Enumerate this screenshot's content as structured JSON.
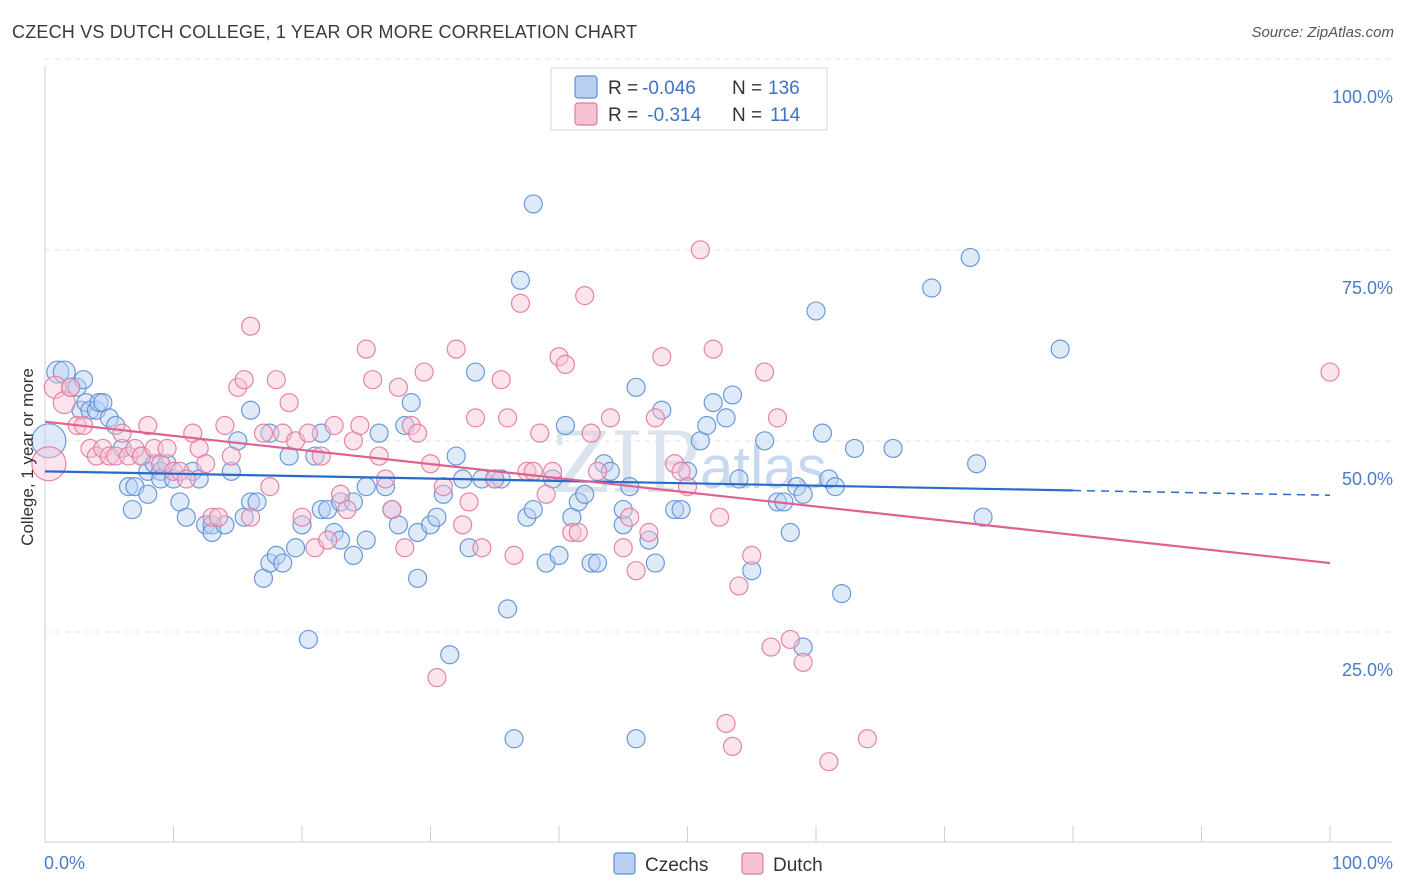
{
  "title": "CZECH VS DUTCH COLLEGE, 1 YEAR OR MORE CORRELATION CHART",
  "source": "Source: ZipAtlas.com",
  "colors": {
    "czechs": "#5b8fd6",
    "czechs_fill": "#b8d0f2",
    "dutch": "#e3789d",
    "dutch_fill": "#f7c3d4",
    "czechs_line": "#2a6ac9",
    "dutch_line": "#e0608e"
  },
  "legend": {
    "rows": [
      {
        "r_label": "R = ",
        "r_value": "-0.046",
        "n_label": "N = ",
        "n_value": "136"
      },
      {
        "r_label": "R = ",
        "r_value": " -0.314",
        "n_label": "N = ",
        "n_value": "114"
      }
    ]
  },
  "bottom_legend": {
    "czechs": "Czechs",
    "dutch": "Dutch"
  },
  "watermark": {
    "zip": "ZIP",
    "atlas": "atlas"
  },
  "chart_data": {
    "type": "scatter",
    "xlabel": "",
    "ylabel": "College, 1 year or more",
    "x_tick_labels": [
      "0.0%",
      "100.0%"
    ],
    "y_tick_labels": [
      "100.0%",
      "75.0%",
      "50.0%",
      "25.0%"
    ],
    "xlim": [
      0,
      100
    ],
    "ylim": [
      0,
      100
    ],
    "grid": "horizontal dashed",
    "series": [
      {
        "name": "Czechs",
        "trend": {
          "x0": 0,
          "y0": 51.0,
          "x1": 80,
          "y1": 48.5,
          "dash_to": 100
        },
        "points": [
          [
            0.3,
            55
          ],
          [
            1,
            64
          ],
          [
            1.5,
            64
          ],
          [
            2,
            62
          ],
          [
            2.5,
            62
          ],
          [
            2.8,
            59
          ],
          [
            3,
            63
          ],
          [
            3.2,
            60
          ],
          [
            3.5,
            59
          ],
          [
            4,
            59
          ],
          [
            4.2,
            60
          ],
          [
            4.5,
            60
          ],
          [
            5,
            58
          ],
          [
            5.5,
            57
          ],
          [
            6,
            54
          ],
          [
            6.5,
            49
          ],
          [
            6.8,
            46
          ],
          [
            7,
            49
          ],
          [
            7.5,
            53
          ],
          [
            8,
            51
          ],
          [
            8,
            48
          ],
          [
            8.5,
            52
          ],
          [
            9,
            51
          ],
          [
            9,
            50
          ],
          [
            9.5,
            52
          ],
          [
            10,
            50
          ],
          [
            10.5,
            47
          ],
          [
            11,
            45
          ],
          [
            11.5,
            51
          ],
          [
            12,
            50
          ],
          [
            12.5,
            44
          ],
          [
            13,
            44
          ],
          [
            13,
            43
          ],
          [
            14,
            44
          ],
          [
            14.5,
            51
          ],
          [
            15,
            55
          ],
          [
            15.5,
            45
          ],
          [
            16,
            47
          ],
          [
            16,
            59
          ],
          [
            16.5,
            47
          ],
          [
            17,
            37
          ],
          [
            17.5,
            56
          ],
          [
            17.5,
            39
          ],
          [
            18,
            40
          ],
          [
            18.5,
            39
          ],
          [
            19,
            53
          ],
          [
            19.5,
            41
          ],
          [
            20,
            44
          ],
          [
            20.5,
            29
          ],
          [
            21,
            53
          ],
          [
            21.5,
            46
          ],
          [
            21.5,
            56
          ],
          [
            22,
            46
          ],
          [
            22.5,
            43
          ],
          [
            23,
            42
          ],
          [
            23,
            47
          ],
          [
            24,
            47
          ],
          [
            24,
            40
          ],
          [
            25,
            42
          ],
          [
            25,
            49
          ],
          [
            26,
            56
          ],
          [
            26.5,
            49
          ],
          [
            27,
            46
          ],
          [
            27.5,
            44
          ],
          [
            28,
            57
          ],
          [
            28.5,
            60
          ],
          [
            29,
            37
          ],
          [
            29,
            43
          ],
          [
            30,
            44
          ],
          [
            30.5,
            45
          ],
          [
            31,
            48
          ],
          [
            31.5,
            27
          ],
          [
            32,
            53
          ],
          [
            32.5,
            50
          ],
          [
            33,
            41
          ],
          [
            33.5,
            64
          ],
          [
            34,
            50
          ],
          [
            35,
            50
          ],
          [
            35.5,
            50
          ],
          [
            36,
            33
          ],
          [
            36.5,
            16
          ],
          [
            37,
            76
          ],
          [
            37.5,
            45
          ],
          [
            38,
            46
          ],
          [
            38,
            86
          ],
          [
            39,
            39
          ],
          [
            39.5,
            50
          ],
          [
            40,
            40
          ],
          [
            40.5,
            57
          ],
          [
            41,
            45
          ],
          [
            41.5,
            47
          ],
          [
            42,
            48
          ],
          [
            42.5,
            39
          ],
          [
            43,
            39
          ],
          [
            43.5,
            52
          ],
          [
            44,
            51
          ],
          [
            45,
            44
          ],
          [
            45,
            46
          ],
          [
            45.5,
            49
          ],
          [
            46,
            62
          ],
          [
            46,
            16
          ],
          [
            47,
            42
          ],
          [
            47.5,
            39
          ],
          [
            48,
            59
          ],
          [
            49,
            46
          ],
          [
            49.5,
            46
          ],
          [
            50,
            51
          ],
          [
            51,
            55
          ],
          [
            51.5,
            57
          ],
          [
            52,
            60
          ],
          [
            53,
            58
          ],
          [
            53.5,
            61
          ],
          [
            54,
            50
          ],
          [
            55,
            38
          ],
          [
            56,
            55
          ],
          [
            57,
            47
          ],
          [
            57.5,
            47
          ],
          [
            58,
            43
          ],
          [
            58.5,
            49
          ],
          [
            59,
            48
          ],
          [
            59,
            28
          ],
          [
            60,
            72
          ],
          [
            60.5,
            56
          ],
          [
            61,
            50
          ],
          [
            61.5,
            49
          ],
          [
            62,
            35
          ],
          [
            63,
            54
          ],
          [
            66,
            54
          ],
          [
            69,
            75
          ],
          [
            72,
            79
          ],
          [
            72.5,
            52
          ],
          [
            73,
            45
          ],
          [
            79,
            67
          ]
        ]
      },
      {
        "name": "Dutch",
        "trend": {
          "x0": 0,
          "y0": 57.5,
          "x1": 100,
          "y1": 39.0
        },
        "points": [
          [
            0.3,
            52
          ],
          [
            0.8,
            62
          ],
          [
            1.5,
            60
          ],
          [
            2,
            62
          ],
          [
            2.5,
            57
          ],
          [
            3,
            57
          ],
          [
            3.5,
            54
          ],
          [
            4,
            53
          ],
          [
            4.5,
            54
          ],
          [
            5,
            53
          ],
          [
            5.5,
            53
          ],
          [
            6,
            56
          ],
          [
            6.5,
            53
          ],
          [
            7,
            54
          ],
          [
            7.5,
            53
          ],
          [
            8,
            57
          ],
          [
            8.5,
            54
          ],
          [
            9,
            52
          ],
          [
            9.5,
            54
          ],
          [
            10,
            51
          ],
          [
            10.5,
            51
          ],
          [
            11,
            50
          ],
          [
            11.5,
            56
          ],
          [
            12,
            54
          ],
          [
            12.5,
            52
          ],
          [
            13,
            45
          ],
          [
            13.5,
            45
          ],
          [
            14,
            57
          ],
          [
            14.5,
            53
          ],
          [
            15,
            62
          ],
          [
            15.5,
            63
          ],
          [
            16,
            45
          ],
          [
            16,
            70
          ],
          [
            17,
            56
          ],
          [
            17.5,
            49
          ],
          [
            18,
            63
          ],
          [
            18.5,
            56
          ],
          [
            19,
            60
          ],
          [
            19.5,
            55
          ],
          [
            20,
            45
          ],
          [
            20.5,
            56
          ],
          [
            21,
            41
          ],
          [
            21.5,
            53
          ],
          [
            22,
            42
          ],
          [
            22.5,
            57
          ],
          [
            23,
            48
          ],
          [
            23.5,
            46
          ],
          [
            24,
            55
          ],
          [
            24.5,
            57
          ],
          [
            25,
            67
          ],
          [
            25.5,
            63
          ],
          [
            26,
            53
          ],
          [
            26.5,
            50
          ],
          [
            27,
            46
          ],
          [
            27.5,
            62
          ],
          [
            28,
            41
          ],
          [
            28.5,
            57
          ],
          [
            29,
            56
          ],
          [
            29.5,
            64
          ],
          [
            30,
            52
          ],
          [
            30.5,
            24
          ],
          [
            31,
            49
          ],
          [
            32,
            67
          ],
          [
            32.5,
            44
          ],
          [
            33,
            47
          ],
          [
            33.5,
            58
          ],
          [
            34,
            41
          ],
          [
            35,
            50
          ],
          [
            35.5,
            63
          ],
          [
            36,
            58
          ],
          [
            36.5,
            40
          ],
          [
            37,
            73
          ],
          [
            37.5,
            51
          ],
          [
            38,
            51
          ],
          [
            38.5,
            56
          ],
          [
            39,
            48
          ],
          [
            39.5,
            51
          ],
          [
            40,
            66
          ],
          [
            40.5,
            65
          ],
          [
            41,
            43
          ],
          [
            41.5,
            43
          ],
          [
            42,
            74
          ],
          [
            42.5,
            56
          ],
          [
            43,
            51
          ],
          [
            44,
            58
          ],
          [
            45,
            41
          ],
          [
            45.5,
            45
          ],
          [
            46,
            38
          ],
          [
            47,
            43
          ],
          [
            47.5,
            58
          ],
          [
            48,
            66
          ],
          [
            49,
            52
          ],
          [
            49.5,
            51
          ],
          [
            50,
            49
          ],
          [
            51,
            80
          ],
          [
            52,
            67
          ],
          [
            52.5,
            45
          ],
          [
            53,
            18
          ],
          [
            53.5,
            15
          ],
          [
            54,
            36
          ],
          [
            55,
            40
          ],
          [
            56,
            64
          ],
          [
            56.5,
            28
          ],
          [
            57,
            58
          ],
          [
            58,
            29
          ],
          [
            59,
            26
          ],
          [
            61,
            13
          ],
          [
            64,
            16
          ],
          [
            100,
            64
          ]
        ]
      }
    ]
  }
}
